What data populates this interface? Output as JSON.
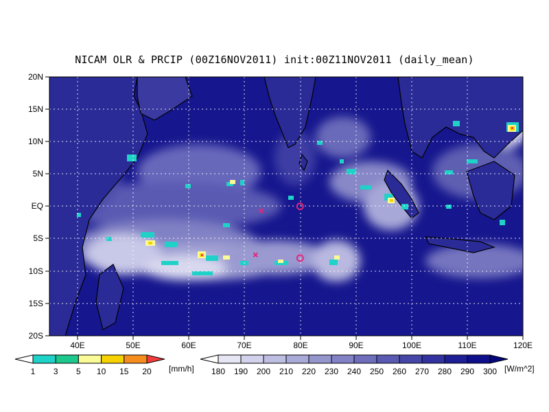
{
  "title": "NICAM OLR & PRCIP (00Z16NOV2011) init:00Z11NOV2011 (daily_mean)",
  "map": {
    "lon_range": [
      35,
      120
    ],
    "lat_range": [
      -20,
      20
    ],
    "lat_ticks": [
      "20N",
      "15N",
      "10N",
      "5N",
      "EQ",
      "5S",
      "10S",
      "15S",
      "20S"
    ],
    "lon_ticks": [
      "40E",
      "50E",
      "60E",
      "70E",
      "80E",
      "90E",
      "100E",
      "110E",
      "120E"
    ],
    "grid": "dotted",
    "markers": [
      {
        "symbol": "x",
        "lon": 73,
        "lat": -0.7
      },
      {
        "symbol": "x",
        "lon": 72,
        "lat": -7.5
      },
      {
        "symbol": "o",
        "lon": 80,
        "lat": 0
      },
      {
        "symbol": "o",
        "lon": 80,
        "lat": -8
      }
    ],
    "marker_color": "#e0287a"
  },
  "precip_colorbar": {
    "unit": "[mm/h]",
    "labels": [
      "1",
      "3",
      "5",
      "10",
      "15",
      "20"
    ],
    "colors": [
      "#ffffff",
      "#1ed2c8",
      "#1ec88c",
      "#fafa96",
      "#f5d200",
      "#f58c1e",
      "#f53c3c"
    ]
  },
  "olr_colorbar": {
    "unit": "[W/m^2]",
    "labels": [
      "180",
      "190",
      "200",
      "210",
      "220",
      "230",
      "240",
      "250",
      "260",
      "270",
      "280",
      "290",
      "300"
    ],
    "colors": [
      "#ffffff",
      "#e6e6f5",
      "#d2d2ec",
      "#bebee2",
      "#aaaad9",
      "#9696cf",
      "#8282c6",
      "#6e6ebc",
      "#5a5ab3",
      "#4646a9",
      "#3232a0",
      "#1e1e96",
      "#0f0f8c",
      "#05057f"
    ]
  }
}
